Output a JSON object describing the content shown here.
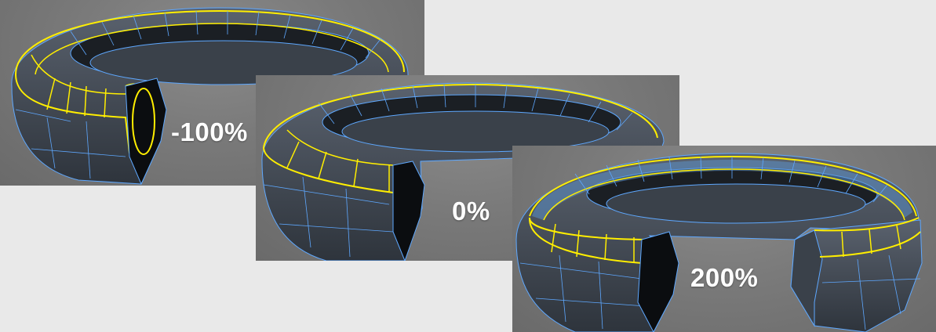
{
  "colors": {
    "background": "#e9e9e9",
    "viewport": "#7a7a7a",
    "wire": "#5ea8ff",
    "selection": "#ffee00",
    "surface": "#3f4650",
    "cap": "#0b0d10"
  },
  "panels": [
    {
      "name": "negative-100",
      "label": "-100%"
    },
    {
      "name": "zero",
      "label": "0%"
    },
    {
      "name": "positive-200",
      "label": "200%"
    }
  ]
}
